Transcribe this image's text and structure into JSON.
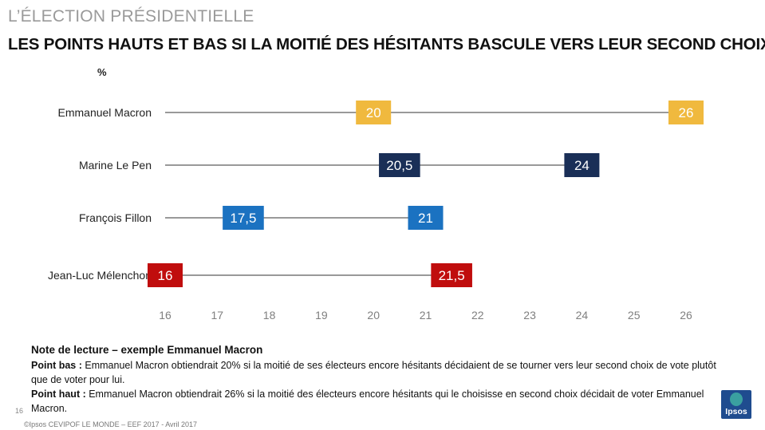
{
  "header": {
    "kicker": "L’ÉLECTION PRÉSIDENTIELLE",
    "title": "LES POINTS HAUTS ET BAS SI LA MOITIÉ DES HÉSITANTS BASCULE VERS LEUR SECOND CHOIX"
  },
  "chart_data": {
    "type": "dumbbell",
    "unit_label": "%",
    "xlim": [
      16,
      26
    ],
    "x_ticks": [
      "16",
      "17",
      "18",
      "19",
      "20",
      "21",
      "22",
      "23",
      "24",
      "25",
      "26"
    ],
    "line_start": 16,
    "categories": [
      "Emmanuel Macron",
      "Marine Le Pen",
      "François Fillon",
      "Jean-Luc Mélenchon"
    ],
    "series": [
      {
        "name": "Point bas",
        "values": [
          20,
          20.5,
          17.5,
          16
        ],
        "labels": [
          "20",
          "20,5",
          "17,5",
          "16"
        ]
      },
      {
        "name": "Point haut",
        "values": [
          26,
          24,
          21,
          21.5
        ],
        "labels": [
          "26",
          "24",
          "21",
          "21,5"
        ]
      }
    ],
    "colors": [
      "#f0b93e",
      "#1a2f57",
      "#1b72c1",
      "#c00d0d"
    ]
  },
  "note": {
    "heading": "Note de lecture – exemple Emmanuel Macron",
    "low_label": "Point bas :",
    "low_text": " Emmanuel Macron obtiendrait 20% si la moitié de ses électeurs encore hésitants décidaient de se tourner vers leur second choix de vote plutôt que de voter pour lui.",
    "high_label": "Point haut :",
    "high_text": " Emmanuel Macron obtiendrait 26% si la moitié des électeurs encore hésitants qui le choisisse en second choix décidait de voter Emmanuel Macron."
  },
  "footer": {
    "page_number": "16",
    "credit": "©Ipsos  CEVIPOF LE MONDE – EEF 2017 - Avril 2017"
  },
  "logo": {
    "text": "Ipsos"
  }
}
